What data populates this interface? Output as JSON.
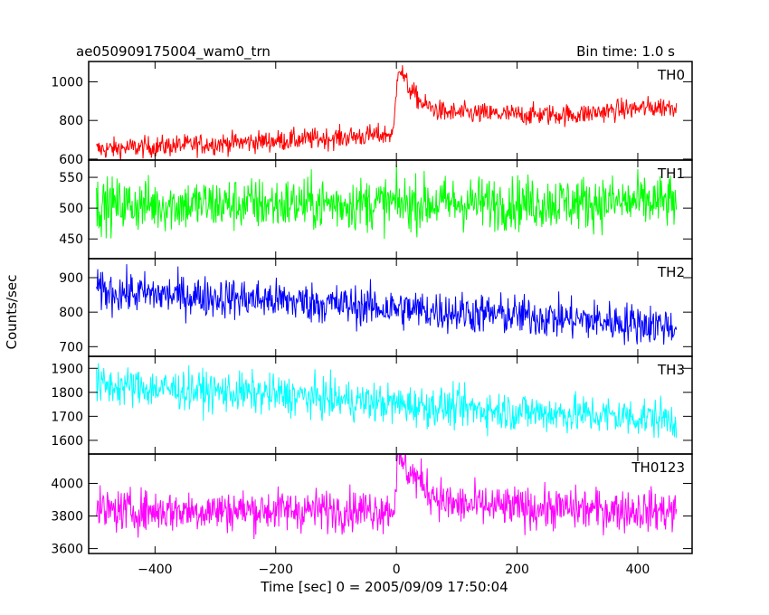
{
  "header": {
    "title": "ae050909175004_wam0_trn",
    "bin_time": "Bin time: 1.0 s"
  },
  "chart_data": {
    "type": "line",
    "xlabel": "Time [sec] 0 = 2005/09/09 17:50:04",
    "ylabel": "Counts/sec",
    "xlim": [
      -510,
      490
    ],
    "x_range": [
      -497,
      464
    ],
    "x_ticks": [
      -400,
      -200,
      0,
      200,
      400
    ],
    "x_tick_labels": [
      "−400",
      "−200",
      "0",
      "200",
      "400"
    ],
    "panels": [
      {
        "name": "TH0",
        "color": "#ff0000",
        "ylim": [
          595,
          1105
        ],
        "y_ticks": [
          600,
          800,
          1000
        ],
        "y_tick_labels": [
          "600",
          "800",
          "1000"
        ],
        "trend": [
          [
            -497,
            650
          ],
          [
            -300,
            680
          ],
          [
            -100,
            710
          ],
          [
            -5,
            730
          ],
          [
            3,
            1090
          ],
          [
            20,
            970
          ],
          [
            45,
            880
          ],
          [
            80,
            840
          ],
          [
            200,
            830
          ],
          [
            300,
            830
          ],
          [
            370,
            855
          ],
          [
            464,
            875
          ]
        ],
        "noise": 28
      },
      {
        "name": "TH1",
        "color": "#00ff00",
        "ylim": [
          418,
          578
        ],
        "y_ticks": [
          450,
          500,
          550
        ],
        "y_tick_labels": [
          "450",
          "500",
          "550"
        ],
        "trend": [
          [
            -497,
            505
          ],
          [
            464,
            510
          ]
        ],
        "noise": 22
      },
      {
        "name": "TH2",
        "color": "#0000ff",
        "ylim": [
          672,
          955
        ],
        "y_ticks": [
          700,
          800,
          900
        ],
        "y_tick_labels": [
          "700",
          "800",
          "900"
        ],
        "trend": [
          [
            -497,
            860
          ],
          [
            -200,
            835
          ],
          [
            0,
            810
          ],
          [
            200,
            790
          ],
          [
            464,
            760
          ]
        ],
        "noise": 30
      },
      {
        "name": "TH3",
        "color": "#00ffff",
        "ylim": [
          1543,
          1950
        ],
        "y_ticks": [
          1600,
          1700,
          1800,
          1900
        ],
        "y_tick_labels": [
          "1600",
          "1700",
          "1800",
          "1900"
        ],
        "trend": [
          [
            -497,
            1830
          ],
          [
            -200,
            1790
          ],
          [
            0,
            1750
          ],
          [
            200,
            1720
          ],
          [
            464,
            1690
          ]
        ],
        "noise": 42
      },
      {
        "name": "TH0123",
        "color": "#ff00ff",
        "ylim": [
          3570,
          4180
        ],
        "y_ticks": [
          3600,
          3800,
          4000
        ],
        "y_tick_labels": [
          "3600",
          "3800",
          "4000"
        ],
        "trend": [
          [
            -497,
            3830
          ],
          [
            -5,
            3840
          ],
          [
            3,
            4150
          ],
          [
            25,
            4060
          ],
          [
            55,
            3950
          ],
          [
            90,
            3870
          ],
          [
            200,
            3850
          ],
          [
            464,
            3830
          ]
        ],
        "noise": 65
      }
    ]
  }
}
